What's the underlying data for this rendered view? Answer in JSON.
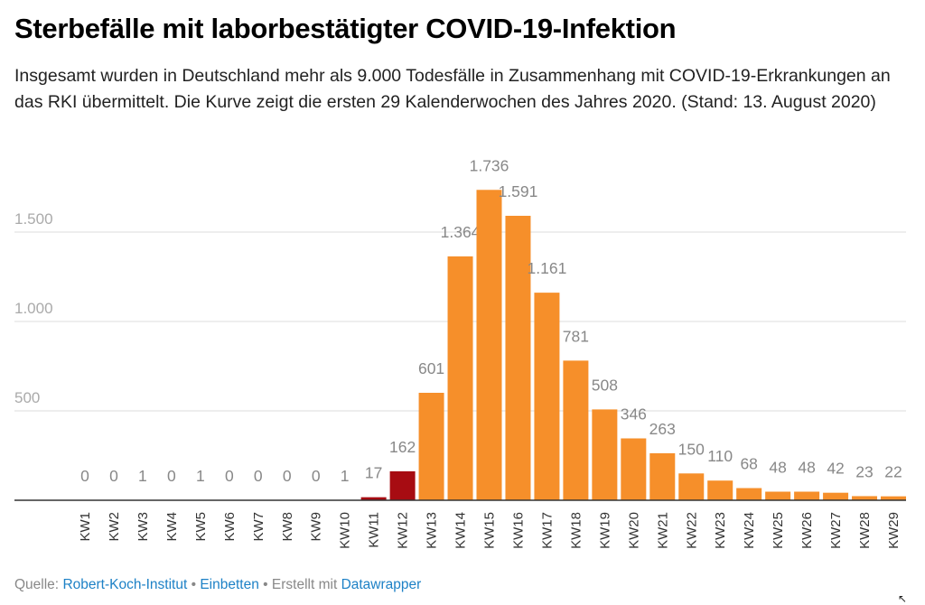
{
  "header": {
    "title": "Sterbefälle mit laborbestätigter COVID-19-Infektion",
    "subtitle": "Insgesamt wurden in Deutschland mehr als 9.000 Todesfälle in Zusammenhang mit COVID-19-Erkrankungen an das RKI übermittelt. Die Kurve zeigt die ersten 29 Kalenderwochen des Jahres 2020. (Stand: 13. August 2020)"
  },
  "chart_data": {
    "type": "bar",
    "title": "Sterbefälle mit laborbestätigter COVID-19-Infektion",
    "xlabel": "",
    "ylabel": "",
    "ylim": [
      0,
      1750
    ],
    "grid": true,
    "yticks": [
      500,
      1000,
      1500
    ],
    "ytick_labels": [
      "500",
      "1.000",
      "1.500"
    ],
    "categories": [
      "KW1",
      "KW2",
      "KW3",
      "KW4",
      "KW5",
      "KW6",
      "KW7",
      "KW8",
      "KW9",
      "KW10",
      "KW11",
      "KW12",
      "KW13",
      "KW14",
      "KW15",
      "KW16",
      "KW17",
      "KW18",
      "KW19",
      "KW20",
      "KW21",
      "KW22",
      "KW23",
      "KW24",
      "KW25",
      "KW26",
      "KW27",
      "KW28",
      "KW29"
    ],
    "values": [
      0,
      0,
      1,
      0,
      1,
      0,
      0,
      0,
      0,
      1,
      17,
      162,
      601,
      1364,
      1736,
      1591,
      1161,
      781,
      508,
      346,
      263,
      150,
      110,
      68,
      48,
      48,
      42,
      23,
      22
    ],
    "value_labels": [
      "0",
      "0",
      "1",
      "0",
      "1",
      "0",
      "0",
      "0",
      "0",
      "1",
      "17",
      "162",
      "601",
      "1.364",
      "1.736",
      "1.591",
      "1.161",
      "781",
      "508",
      "346",
      "263",
      "150",
      "110",
      "68",
      "48",
      "48",
      "42",
      "23",
      "22"
    ],
    "highlighted_categories": [
      "KW11",
      "KW12"
    ],
    "colors": {
      "default": "#f68f2a",
      "highlight": "#a70c12",
      "label": "#888888",
      "grid": "#dddddd",
      "axis": "#333333"
    }
  },
  "footer": {
    "source_prefix": "Quelle:",
    "source_link": "Robert-Koch-Institut",
    "separator": "•",
    "embed_link": "Einbetten",
    "created_with": "Erstellt mit",
    "datawrapper_link": "Datawrapper"
  }
}
